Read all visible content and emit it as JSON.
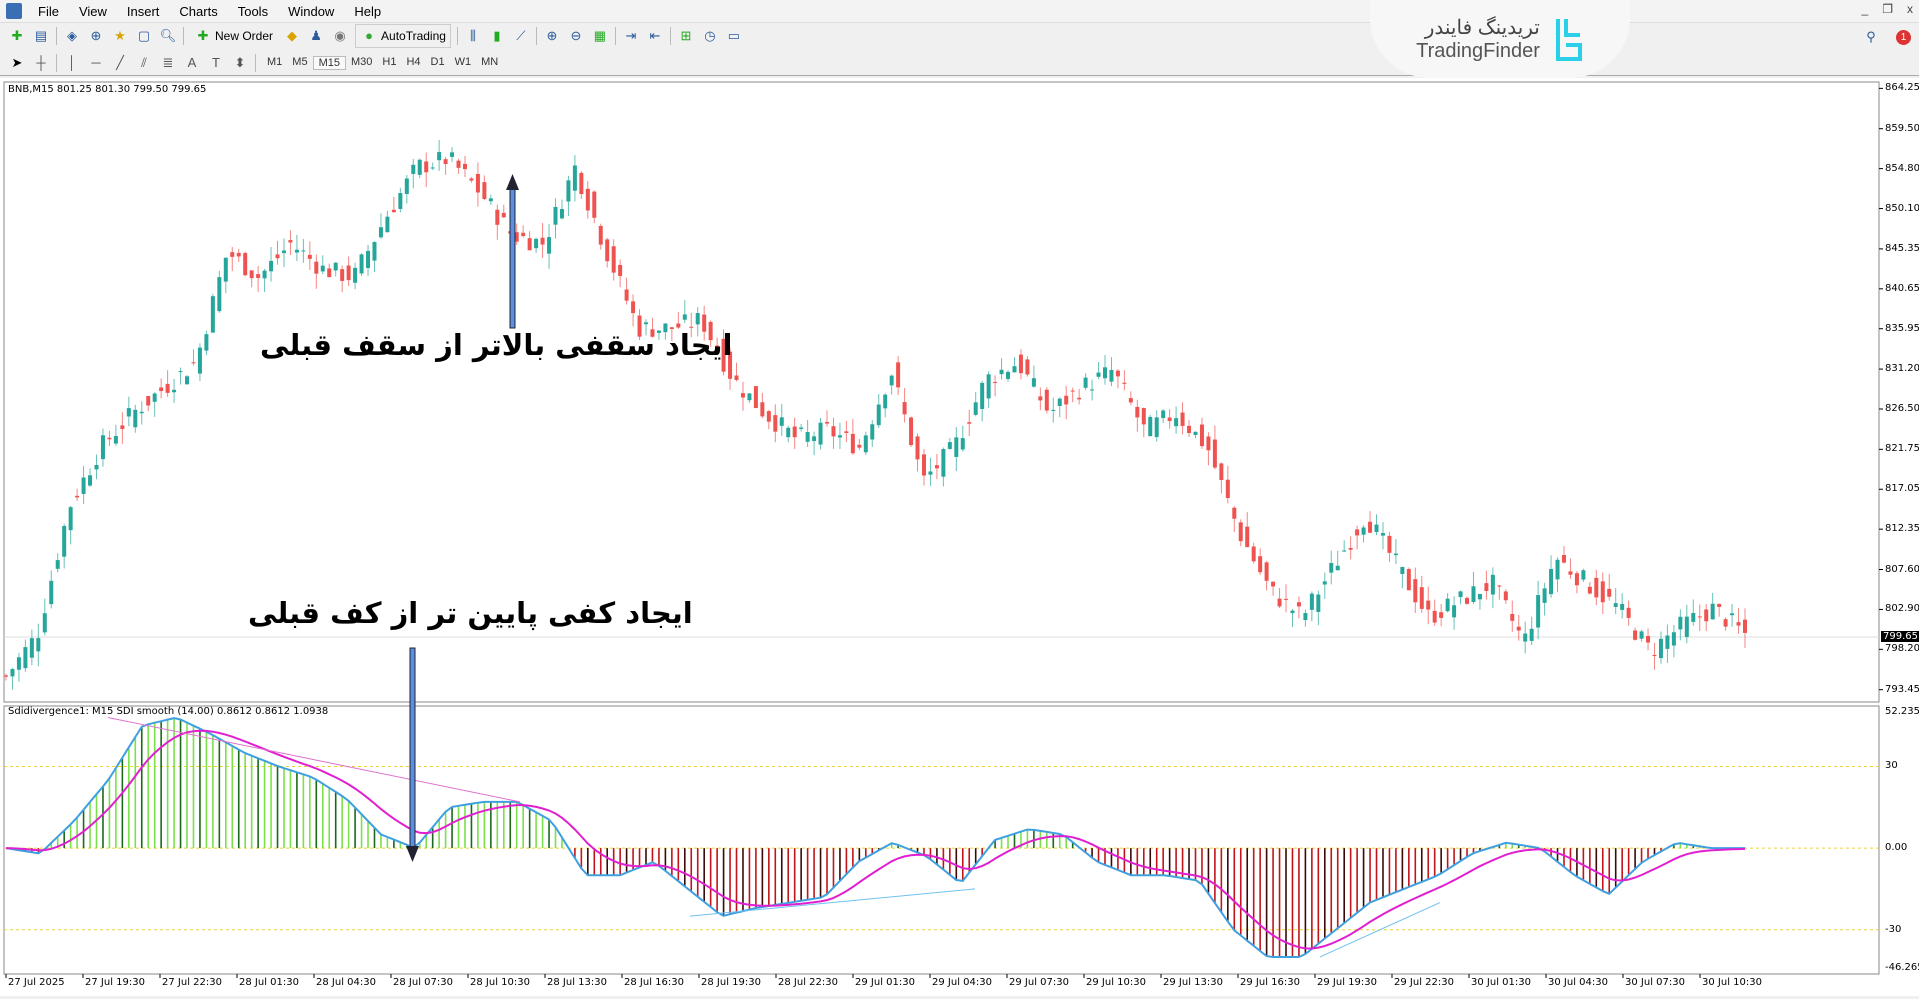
{
  "menu": [
    "File",
    "View",
    "Insert",
    "Charts",
    "Tools",
    "Window",
    "Help"
  ],
  "toolbar": {
    "new_order": "New Order",
    "autotrading": "AutoTrading"
  },
  "timeframes": [
    "M1",
    "M5",
    "M15",
    "M30",
    "H1",
    "H4",
    "D1",
    "W1",
    "MN"
  ],
  "active_timeframe": "M15",
  "logo": {
    "fa": "تریدینگ فایندر",
    "en": "TradingFinder"
  },
  "notifications": "1",
  "window_controls": [
    "_",
    "❐",
    "x"
  ],
  "chart": {
    "info": "BNB,M15  801.25 801.30 799.50 799.65",
    "price_axis": [
      "864.25",
      "859.50",
      "854.80",
      "850.10",
      "845.35",
      "840.65",
      "835.95",
      "831.20",
      "826.50",
      "821.75",
      "817.05",
      "812.35",
      "807.60",
      "802.90",
      "798.20",
      "793.45"
    ],
    "current_price": "799.65",
    "annotation_top": "ایجاد سقفی بالاتر از سقف قبلی",
    "annotation_bottom": "ایجاد کفی پایین تر از کف قبلی",
    "indicator_info": "Sdidivergence1: M15 SDI smooth (14.00) 0.8612 0.8612 1.0938",
    "indicator_axis": [
      "52.2351",
      "30",
      "0.00",
      "-30",
      "-46.2654"
    ],
    "time_axis": [
      "27 Jul 2025",
      "27 Jul 19:30",
      "27 Jul 22:30",
      "28 Jul 01:30",
      "28 Jul 04:30",
      "28 Jul 07:30",
      "28 Jul 10:30",
      "28 Jul 13:30",
      "28 Jul 16:30",
      "28 Jul 19:30",
      "28 Jul 22:30",
      "29 Jul 01:30",
      "29 Jul 04:30",
      "29 Jul 07:30",
      "29 Jul 10:30",
      "29 Jul 13:30",
      "29 Jul 16:30",
      "29 Jul 19:30",
      "29 Jul 22:30",
      "30 Jul 01:30",
      "30 Jul 04:30",
      "30 Jul 07:30",
      "30 Jul 10:30"
    ],
    "colors": {
      "bull": "#26a69a",
      "bear": "#ef5350",
      "hist_pos": "#7be04a",
      "hist_neg": "#c0141a",
      "sdi": "#3fa0e0",
      "smooth": "#e020d0",
      "level": "#e8d040",
      "arrow": "#5b8fe0"
    }
  },
  "chart_data": {
    "type": "candlestick",
    "price_range": [
      792,
      865
    ],
    "close_path": [
      795,
      800,
      815,
      822,
      826,
      829,
      832,
      845,
      842,
      846,
      843,
      842,
      849,
      855,
      856,
      852,
      847,
      846,
      855,
      845,
      836,
      836,
      837,
      830,
      826,
      823,
      824,
      822,
      831,
      818,
      822,
      830,
      832,
      826,
      829,
      831,
      824,
      826,
      822,
      812,
      805,
      802,
      808,
      814,
      808,
      802,
      804,
      806,
      799,
      809,
      806,
      803,
      798,
      801,
      803,
      800
    ],
    "indicator": {
      "range": [
        -46.2654,
        52.2351
      ],
      "levels": [
        30,
        0,
        -30
      ],
      "sdi": [
        0,
        -2,
        10,
        25,
        45,
        48,
        42,
        35,
        30,
        26,
        18,
        5,
        0,
        15,
        17,
        17,
        10,
        -10,
        -10,
        -5,
        -15,
        -25,
        -22,
        -20,
        -18,
        -5,
        2,
        -3,
        -13,
        3,
        7,
        5,
        -5,
        -10,
        -10,
        -12,
        -30,
        -40,
        -40,
        -30,
        -20,
        -15,
        -10,
        -2,
        2,
        0,
        -10,
        -17,
        -5,
        2,
        0,
        0
      ]
    }
  }
}
